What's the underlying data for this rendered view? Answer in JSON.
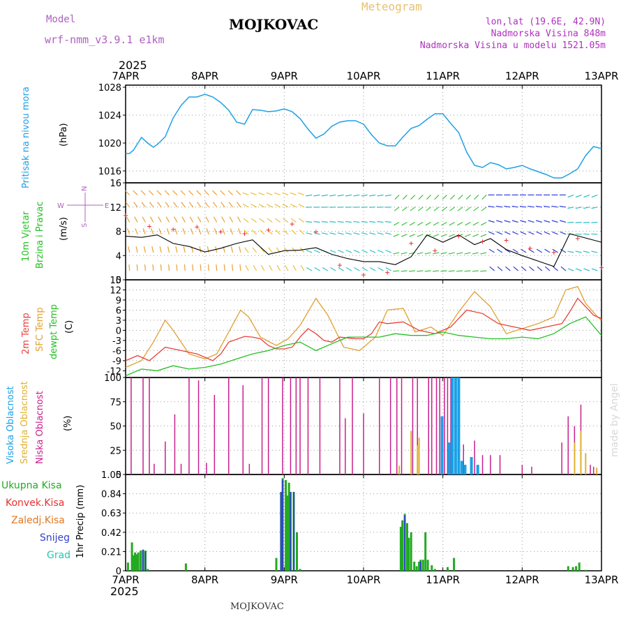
{
  "header": {
    "model_label": "Model",
    "model_name": "wrf-nmm_v3.9.1 e1km",
    "title": "MOJKOVAC",
    "meteogram": "Meteogram",
    "lonlat": "lon,lat (19.6E, 42.9N)",
    "altitude": "Nadmorska Visina 848m",
    "model_altitude": "Nadmorska Visina u modelu 1521.05m",
    "year_top": "2025",
    "year_bottom": "2025",
    "footer": "MOJKOVAC",
    "credit": "made by Angel"
  },
  "colors": {
    "pressure": "#1ea0e6",
    "temp2m": "#e8403a",
    "sfc": "#e0a030",
    "dewpt": "#22c022",
    "high": "#1aa0e6",
    "mid": "#e0b030",
    "low": "#c8208c",
    "total": "#22aa22",
    "conv": "#e83030",
    "frozen": "#e07820",
    "snow": "#3040d0",
    "hail": "#20c8b0"
  },
  "chart_data": [
    {
      "type": "line",
      "panel": "pressure",
      "ylabel_left": "Pritisak na nivou mora",
      "ylabel_unit": "(hPa)",
      "x_ticks": [
        "7APR",
        "8APR",
        "9APR",
        "10APR",
        "11APR",
        "12APR",
        "13APR"
      ],
      "ylim": [
        1014.3,
        1028.3
      ],
      "y_ticks": [
        "1028",
        "1024",
        "1020",
        "1016"
      ],
      "series": [
        {
          "x": [
            0,
            0.05,
            0.1,
            0.2,
            0.3,
            0.35,
            0.4,
            0.5,
            0.6,
            0.7,
            0.8,
            0.9,
            1.0,
            1.1,
            1.2,
            1.3,
            1.4,
            1.5,
            1.6,
            1.7,
            1.8,
            1.9,
            2.0,
            2.1,
            2.2,
            2.3,
            2.4,
            2.5,
            2.6,
            2.7,
            2.8,
            2.9,
            3.0,
            3.1,
            3.2,
            3.3,
            3.4,
            3.5,
            3.6,
            3.7,
            3.8,
            3.9,
            4.0,
            4.1,
            4.2,
            4.3,
            4.4,
            4.5,
            4.6,
            4.7,
            4.8,
            4.9,
            5.0,
            5.1,
            5.2,
            5.3,
            5.4,
            5.5,
            5.6,
            5.7,
            5.8,
            5.9,
            6.0
          ],
          "values": [
            1018.5,
            1018.5,
            1019.0,
            1020.8,
            1019.8,
            1019.4,
            1019.8,
            1020.9,
            1023.6,
            1025.4,
            1026.6,
            1026.6,
            1027.0,
            1026.6,
            1025.8,
            1024.7,
            1023.0,
            1022.7,
            1024.8,
            1024.7,
            1024.5,
            1024.6,
            1024.9,
            1024.5,
            1023.5,
            1022.0,
            1020.7,
            1021.3,
            1022.4,
            1023.0,
            1023.2,
            1023.2,
            1022.7,
            1021.2,
            1020.0,
            1019.6,
            1019.6,
            1020.9,
            1022.1,
            1022.5,
            1023.4,
            1024.2,
            1024.2,
            1022.8,
            1021.5,
            1018.7,
            1016.8,
            1016.5,
            1017.2,
            1016.9,
            1016.3,
            1016.5,
            1016.8,
            1016.3,
            1015.9,
            1015.5,
            1015.0,
            1015.0,
            1015.6,
            1016.3,
            1018.2,
            1019.5,
            1019.2
          ]
        }
      ]
    },
    {
      "type": "line",
      "panel": "wind",
      "ylabel_left_1": "10m Vjetar",
      "ylabel_left_2": "Brzina i Pravac",
      "ylabel_unit": "(m/s)",
      "compass_n": "N",
      "compass_s": "S",
      "compass_w": "W",
      "compass_e": "E",
      "ylim": [
        0,
        16
      ],
      "y_ticks": [
        "16",
        "12",
        "8",
        "4",
        "0"
      ],
      "series": [
        {
          "name": "speed",
          "x": [
            0,
            0.2,
            0.4,
            0.6,
            0.8,
            1.0,
            1.2,
            1.4,
            1.6,
            1.8,
            2.0,
            2.2,
            2.4,
            2.6,
            2.8,
            3.0,
            3.2,
            3.4,
            3.6,
            3.8,
            4.0,
            4.2,
            4.4,
            4.6,
            4.8,
            5.0,
            5.2,
            5.4,
            5.6,
            5.8,
            6.0
          ],
          "values": [
            7.2,
            7.0,
            7.4,
            6.0,
            5.5,
            4.6,
            5.2,
            6.0,
            6.6,
            4.2,
            4.8,
            4.9,
            5.3,
            4.2,
            3.5,
            3.0,
            3.0,
            2.5,
            3.8,
            7.4,
            6.2,
            7.4,
            5.8,
            6.8,
            5.0,
            4.0,
            3.1,
            2.2,
            7.6,
            6.9,
            6.2
          ]
        },
        {
          "name": "gust",
          "x": [
            0,
            0.3,
            0.6,
            0.9,
            1.2,
            1.5,
            1.8,
            2.1,
            2.4,
            2.7,
            3.0,
            3.3,
            3.6,
            3.9,
            4.2,
            4.5,
            4.8,
            5.1,
            5.4,
            5.7,
            6.0
          ],
          "values": [
            10.6,
            8.8,
            8.3,
            8.7,
            7.9,
            7.6,
            8.2,
            9.2,
            7.9,
            2.4,
            0.8,
            1.2,
            6.0,
            4.8,
            7.2,
            6.3,
            6.5,
            5.2,
            4.5,
            6.8,
            2.0
          ]
        }
      ]
    },
    {
      "type": "line",
      "panel": "temperature",
      "ylabel_left_1": "2m Temp",
      "ylabel_left_2": "SFC Temp",
      "ylabel_left_3": "dewpt Temp",
      "ylabel_unit": "(C)",
      "ylim": [
        -14,
        15
      ],
      "y_ticks": [
        "15",
        "12",
        "9",
        "6",
        "3",
        "0",
        "-3",
        "-6",
        "-9",
        "-12"
      ],
      "series": [
        {
          "name": "2m Temp",
          "x": [
            0,
            0.15,
            0.3,
            0.5,
            0.6,
            0.7,
            0.9,
            1.0,
            1.1,
            1.2,
            1.3,
            1.5,
            1.6,
            1.7,
            1.8,
            1.9,
            2.0,
            2.1,
            2.2,
            2.3,
            2.4,
            2.5,
            2.6,
            2.7,
            2.9,
            3.0,
            3.1,
            3.2,
            3.3,
            3.5,
            3.7,
            3.9,
            4.1,
            4.3,
            4.5,
            4.7,
            4.9,
            5.1,
            5.3,
            5.5,
            5.6,
            5.7,
            5.8,
            5.9,
            6.0
          ],
          "values": [
            -9.0,
            -7.5,
            -9.0,
            -5.0,
            -5.5,
            -6.0,
            -7.0,
            -8.0,
            -9.0,
            -7.0,
            -3.5,
            -1.8,
            -2.0,
            -2.5,
            -4.5,
            -5.5,
            -5.5,
            -5.0,
            -2.0,
            0.5,
            -1.0,
            -3.0,
            -3.5,
            -2.0,
            -2.5,
            -2.5,
            -1.0,
            2.5,
            2.0,
            2.5,
            0.0,
            -1.0,
            1.0,
            6.0,
            5.0,
            2.0,
            1.0,
            0.0,
            1.0,
            2.0,
            5.5,
            9.5,
            7.0,
            4.5,
            3.5
          ]
        },
        {
          "name": "SFC Temp",
          "x": [
            0,
            0.2,
            0.35,
            0.5,
            0.6,
            0.8,
            1.0,
            1.15,
            1.3,
            1.45,
            1.55,
            1.7,
            1.9,
            2.05,
            2.2,
            2.4,
            2.55,
            2.75,
            2.95,
            3.15,
            3.3,
            3.5,
            3.65,
            3.85,
            4.0,
            4.2,
            4.4,
            4.6,
            4.8,
            5.0,
            5.2,
            5.4,
            5.55,
            5.7,
            5.8,
            5.95,
            6.0
          ],
          "values": [
            -11.0,
            -9.0,
            -3.5,
            3.0,
            0.0,
            -7.0,
            -8.5,
            -7.0,
            -0.5,
            6.0,
            4.0,
            -2.0,
            -4.5,
            -2.5,
            1.5,
            9.5,
            4.5,
            -5.0,
            -6.0,
            -2.0,
            6.0,
            6.5,
            -0.5,
            1.0,
            -1.5,
            5.5,
            11.5,
            7.0,
            -1.0,
            0.5,
            2.0,
            4.0,
            12.0,
            13.0,
            8.0,
            4.0,
            3.0
          ]
        },
        {
          "name": "dewpt Temp",
          "x": [
            0,
            0.2,
            0.4,
            0.6,
            0.8,
            1.0,
            1.2,
            1.4,
            1.6,
            1.8,
            2.0,
            2.2,
            2.4,
            2.6,
            2.8,
            3.0,
            3.2,
            3.4,
            3.6,
            3.8,
            4.0,
            4.2,
            4.4,
            4.6,
            4.8,
            5.0,
            5.2,
            5.4,
            5.6,
            5.8,
            6.0
          ],
          "values": [
            -13.5,
            -11.5,
            -12.0,
            -10.5,
            -11.5,
            -11.0,
            -10.0,
            -8.5,
            -7.0,
            -6.0,
            -4.5,
            -3.5,
            -6.0,
            -4.0,
            -2.0,
            -2.0,
            -2.0,
            -1.0,
            -1.5,
            -1.5,
            -0.5,
            -1.5,
            -2.0,
            -2.5,
            -2.5,
            -2.0,
            -2.5,
            -1.0,
            2.0,
            4.0,
            -1.5
          ]
        }
      ]
    },
    {
      "type": "bar",
      "panel": "cloud",
      "ylabel_left_1": "Visoka Oblacnost",
      "ylabel_left_2": "Srednja Oblacnost",
      "ylabel_left_3": "Niska Oblacnost",
      "ylabel_unit": "(%)",
      "ylim": [
        0,
        100
      ],
      "y_ticks": [
        "100",
        "75",
        "50",
        "25",
        "0"
      ],
      "series": [
        {
          "name": "Niska Oblacnost",
          "x": [
            0.07,
            0.22,
            0.3,
            0.36,
            0.5,
            0.62,
            0.7,
            0.8,
            0.92,
            1.02,
            1.12,
            1.3,
            1.48,
            1.56,
            1.72,
            1.8,
            1.98,
            2.08,
            2.15,
            2.2,
            2.3,
            2.45,
            2.7,
            2.77,
            2.86,
            3.0,
            3.2,
            3.34,
            3.42,
            3.48,
            3.62,
            3.68,
            3.82,
            3.86,
            3.92,
            3.96,
            4.02,
            4.06,
            4.1,
            4.26,
            4.4,
            4.5,
            4.6,
            4.72,
            5.0,
            5.12,
            5.5,
            5.58,
            5.66,
            5.74,
            5.86,
            5.9
          ],
          "values": [
            100,
            100,
            100,
            11,
            34,
            62,
            11,
            100,
            97,
            12,
            82,
            100,
            92,
            11,
            100,
            100,
            100,
            100,
            100,
            100,
            100,
            100,
            100,
            58,
            100,
            63,
            100,
            100,
            100,
            100,
            100,
            100,
            100,
            100,
            100,
            100,
            100,
            100,
            100,
            31,
            35,
            20,
            20,
            20,
            10,
            8,
            33,
            60,
            50,
            72,
            10,
            8
          ]
        },
        {
          "name": "Srednja Oblacnost",
          "x": [
            3.45,
            3.6,
            3.68,
            3.7,
            5.66,
            5.74,
            5.8,
            5.94
          ],
          "values": [
            9,
            45,
            30,
            38,
            33,
            45,
            22,
            7
          ]
        },
        {
          "name": "Visoka Oblacnost",
          "x": [
            3.99,
            4.08,
            4.12,
            4.16,
            4.2,
            4.24,
            4.28,
            4.36,
            4.44
          ],
          "values": [
            60,
            33,
            100,
            100,
            100,
            14,
            10,
            18,
            10
          ]
        }
      ]
    },
    {
      "type": "bar",
      "panel": "precip",
      "ylabel_left": "1hr Precip (mm)",
      "legend": [
        "Ukupna Kisa",
        "Konvek.Kisa",
        "Zaledj.Kisa",
        "Snijeg",
        "Grad"
      ],
      "ylim": [
        0,
        1.05
      ],
      "y_ticks": [
        "1.05",
        "0.84",
        "0.63",
        "0.42",
        "0.21",
        "0"
      ],
      "series": [
        {
          "name": "Ukupna Kisa",
          "x": [
            0.03,
            0.08,
            0.1,
            0.12,
            0.14,
            0.16,
            0.19,
            0.22,
            0.25,
            0.28,
            0.76,
            1.9,
            1.96,
            1.98,
            2.02,
            2.04,
            2.06,
            2.08,
            2.12,
            2.16,
            2.2,
            3.47,
            3.49,
            3.52,
            3.55,
            3.57,
            3.6,
            3.64,
            3.67,
            3.7,
            3.72,
            3.75,
            3.78,
            3.81,
            3.86,
            3.9,
            4.06,
            4.14,
            5.58,
            5.64,
            5.68,
            5.72,
            5.8
          ],
          "values": [
            0.09,
            0.31,
            0.17,
            0.2,
            0.18,
            0.2,
            0.22,
            0.23,
            0.22,
            0.02,
            0.08,
            0.14,
            0.86,
            1.01,
            0.99,
            0.82,
            0.96,
            0.86,
            0.86,
            0.42,
            0.02,
            0.48,
            0.55,
            0.62,
            0.52,
            0.36,
            0.42,
            0.1,
            0.05,
            0.1,
            0.12,
            0.12,
            0.42,
            0.12,
            0.06,
            0.02,
            0.04,
            0.14,
            0.05,
            0.04,
            0.05,
            0.09,
            0.01
          ]
        },
        {
          "name": "Snijeg",
          "x": [
            0.22,
            0.25,
            1.96,
            1.98,
            2.08,
            2.12,
            3.52,
            3.72
          ],
          "values": [
            0.23,
            0.21,
            0.86,
            0.99,
            0.86,
            0.86,
            0.6,
            0.1
          ]
        }
      ]
    }
  ]
}
